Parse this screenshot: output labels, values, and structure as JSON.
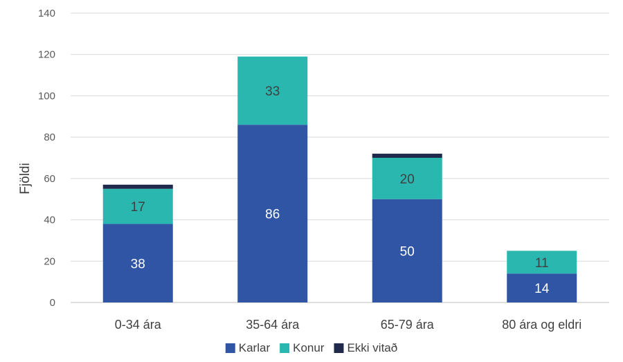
{
  "chart_data": {
    "type": "bar",
    "stacked": true,
    "categories": [
      "0-34 ára",
      "35-64 ára",
      "65-79 ára",
      "80 ára og eldri"
    ],
    "series": [
      {
        "name": "Karlar",
        "color": "#2f55a4",
        "label_color": "#ffffff",
        "values": [
          38,
          86,
          50,
          14
        ]
      },
      {
        "name": "Konur",
        "color": "#2ab7b0",
        "label_color": "#404040",
        "values": [
          17,
          33,
          20,
          11
        ]
      },
      {
        "name": "Ekki vitað",
        "color": "#1f2a4d",
        "label_color": "#ffffff",
        "values": [
          2,
          0,
          2,
          0
        ]
      }
    ],
    "show_labels": [
      true,
      true,
      false
    ],
    "ylabel": "Fjöldi",
    "ylim": [
      0,
      140
    ],
    "yticks": [
      0,
      20,
      40,
      60,
      80,
      100,
      120,
      140
    ],
    "grid": true,
    "legend_position": "bottom"
  }
}
